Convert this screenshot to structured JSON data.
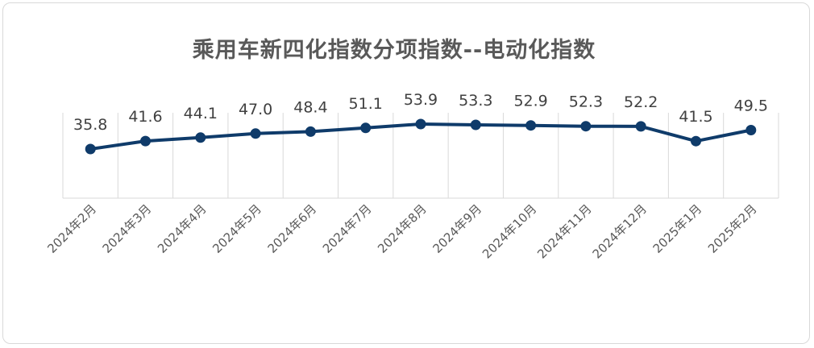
{
  "chart_data": {
    "type": "line",
    "title": "乘用车新四化指数分项指数--电动化指数",
    "categories": [
      "2024年2月",
      "2024年3月",
      "2024年4月",
      "2024年5月",
      "2024年6月",
      "2024年7月",
      "2024年8月",
      "2024年9月",
      "2024年10月",
      "2024年11月",
      "2024年12月",
      "2025年1月",
      "2025年2月"
    ],
    "series": [
      {
        "values": [
          35.8,
          41.6,
          44.1,
          47.0,
          48.4,
          51.1,
          53.9,
          53.3,
          52.9,
          52.3,
          52.2,
          41.5,
          49.5
        ],
        "labels": [
          "35.8",
          "41.6",
          "44.1",
          "47.0",
          "48.4",
          "51.1",
          "53.9",
          "53.3",
          "52.9",
          "52.3",
          "52.2",
          "41.5",
          "49.5"
        ]
      }
    ],
    "xlabel": "",
    "ylabel": "",
    "ylim": [
      0,
      60
    ],
    "grid": "vertical",
    "legend": "none",
    "colors": {
      "line": "#0f3b6a",
      "grid": "#d9d9d9",
      "title": "#595959",
      "tick_text": "#595959",
      "data_label": "#404040"
    }
  }
}
